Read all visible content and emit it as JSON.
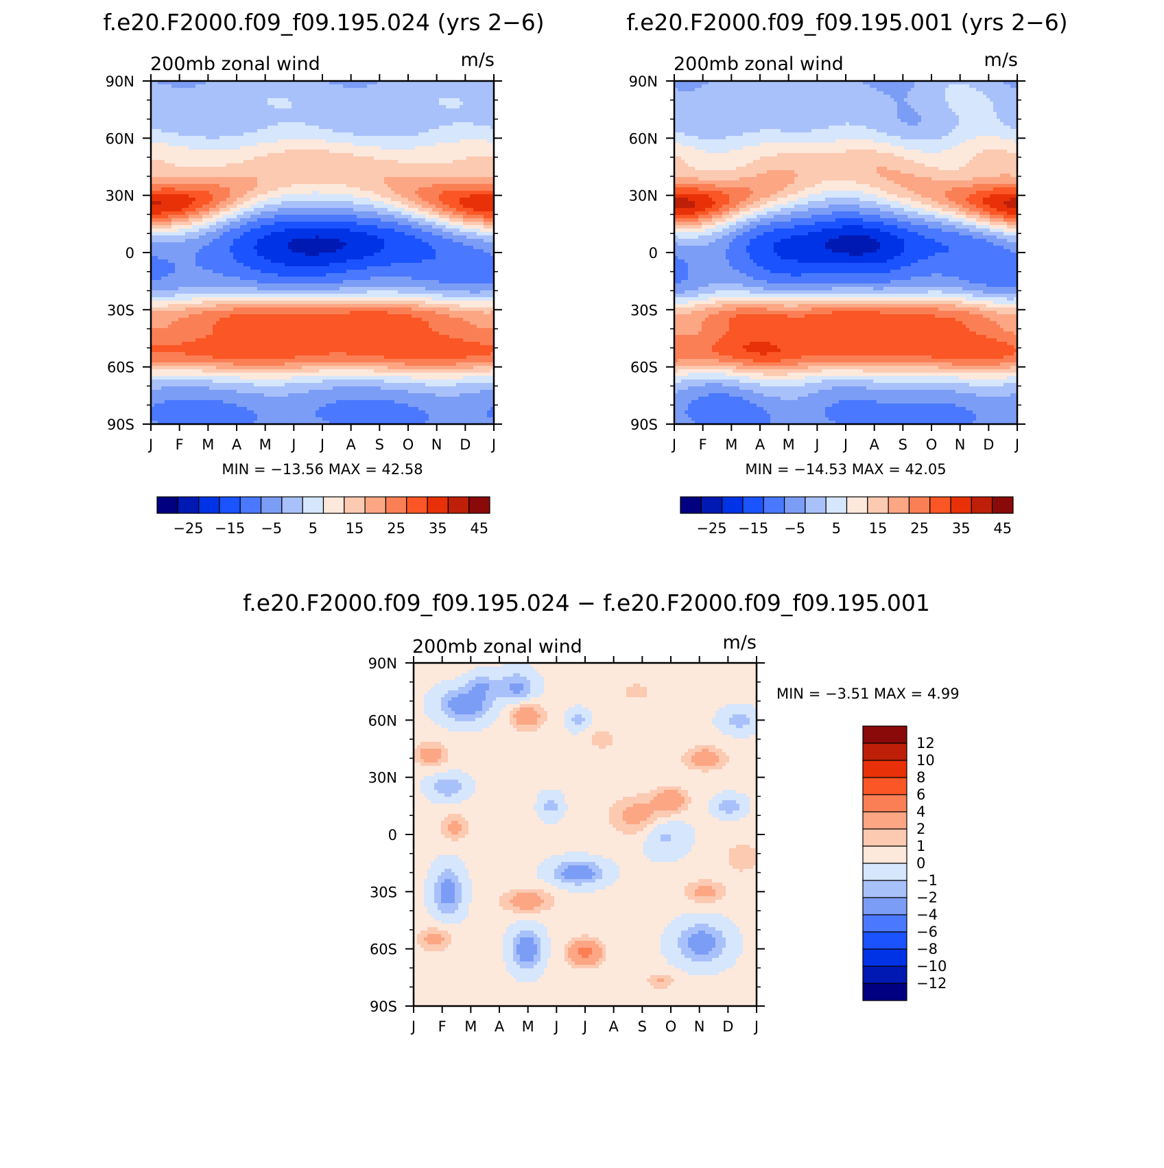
{
  "colors": {
    "neg": [
      "#000080",
      "#0019b3",
      "#0033e6",
      "#1a53ff",
      "#4a78ff",
      "#7c9df5",
      "#a9c1fa",
      "#d6e6fc"
    ],
    "pos": [
      "#fde8dc",
      "#fcc9b1",
      "#fca684",
      "#fb7f55",
      "#fb5625",
      "#e83108",
      "#be1f08",
      "#8a0a0a"
    ]
  },
  "chart_data": [
    {
      "type": "heatmap",
      "title": "f.e20.F2000.f09_f09.195.024 (yrs 2−6)",
      "subtitle": "200mb  zonal  wind",
      "units": "m/s",
      "x_tick_labels": [
        "J",
        "F",
        "M",
        "A",
        "M",
        "J",
        "J",
        "A",
        "S",
        "O",
        "N",
        "D",
        "J"
      ],
      "y_tick_labels": [
        "90N",
        "60N",
        "30N",
        "0",
        "30S",
        "60S",
        "90S"
      ],
      "ylim": [
        -90,
        90
      ],
      "min_max_text": "MIN = −13.56  MAX =  42.58",
      "min": -13.56,
      "max": 42.58,
      "colorbar": {
        "orientation": "horizontal",
        "labels": [
          "−25",
          "−15",
          "−5",
          "5",
          "15",
          "25",
          "35",
          "45"
        ],
        "levels": [
          -30,
          -25,
          -20,
          -15,
          -10,
          -5,
          0,
          5,
          10,
          15,
          20,
          25,
          30,
          35,
          40,
          45
        ]
      }
    },
    {
      "type": "heatmap",
      "title": "f.e20.F2000.f09_f09.195.001 (yrs 2−6)",
      "subtitle": "200mb  zonal  wind",
      "units": "m/s",
      "x_tick_labels": [
        "J",
        "F",
        "M",
        "A",
        "M",
        "J",
        "J",
        "A",
        "S",
        "O",
        "N",
        "D",
        "J"
      ],
      "y_tick_labels": [
        "90N",
        "60N",
        "30N",
        "0",
        "30S",
        "60S",
        "90S"
      ],
      "ylim": [
        -90,
        90
      ],
      "min_max_text": "MIN = −14.53  MAX =  42.05",
      "min": -14.53,
      "max": 42.05,
      "colorbar": {
        "orientation": "horizontal",
        "labels": [
          "−25",
          "−15",
          "−5",
          "5",
          "15",
          "25",
          "35",
          "45"
        ],
        "levels": [
          -30,
          -25,
          -20,
          -15,
          -10,
          -5,
          0,
          5,
          10,
          15,
          20,
          25,
          30,
          35,
          40,
          45
        ]
      }
    },
    {
      "type": "heatmap",
      "title": "f.e20.F2000.f09_f09.195.024 − f.e20.F2000.f09_f09.195.001",
      "subtitle": "200mb  zonal  wind",
      "units": "m/s",
      "x_tick_labels": [
        "J",
        "F",
        "M",
        "A",
        "M",
        "J",
        "J",
        "A",
        "S",
        "O",
        "N",
        "D",
        "J"
      ],
      "y_tick_labels": [
        "90N",
        "60N",
        "30N",
        "0",
        "30S",
        "60S",
        "90S"
      ],
      "ylim": [
        -90,
        90
      ],
      "min_max_text": "MIN =   −3.51  MAX =    4.99",
      "min": -3.51,
      "max": 4.99,
      "colorbar": {
        "orientation": "vertical",
        "labels": [
          "12",
          "10",
          "8",
          "6",
          "4",
          "2",
          "1",
          "0",
          "−1",
          "−2",
          "−4",
          "−6",
          "−8",
          "−10",
          "−12"
        ],
        "levels": [
          12,
          10,
          8,
          6,
          4,
          2,
          1,
          0,
          -1,
          -2,
          -4,
          -6,
          -8,
          -10,
          -12
        ]
      }
    }
  ]
}
